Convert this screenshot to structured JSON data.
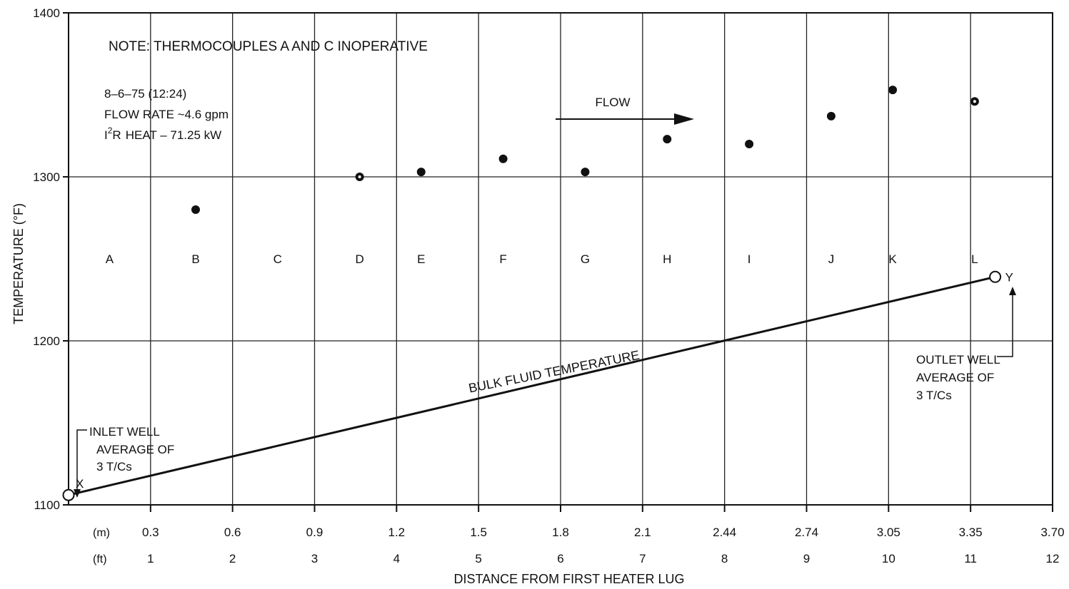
{
  "chart_data": {
    "type": "scatter",
    "ylabel": "TEMPERATURE (°F)",
    "xlabel": "DISTANCE FROM FIRST HEATER LUG",
    "ylim": [
      1100,
      1400
    ],
    "xlim_ft": [
      0,
      12
    ],
    "grid": true,
    "y_ticks": [
      "1100",
      "1200",
      "1300",
      "1400"
    ],
    "x_ticks_m": {
      "unit": "(m)",
      "labels": [
        "0.3",
        "0.6",
        "0.9",
        "1.2",
        "1.5",
        "1.8",
        "2.1",
        "2.44",
        "2.74",
        "3.05",
        "3.35",
        "3.70"
      ]
    },
    "x_ticks_ft": {
      "unit": "(ft)",
      "labels": [
        "1",
        "2",
        "3",
        "4",
        "5",
        "6",
        "7",
        "8",
        "9",
        "10",
        "11",
        "12"
      ]
    },
    "note": "NOTE:  THERMOCOUPLES A AND C INOPERATIVE",
    "info_lines": [
      "8–6–75 (12:24)",
      "FLOW RATE ~4.6 gpm",
      "HEAT – 71.25 kW"
    ],
    "info_heat_prefix": "I",
    "info_heat_sup": "2",
    "info_heat_r": "R",
    "flow_label": "FLOW",
    "thermocouples": [
      {
        "label": "A",
        "x": 0.5
      },
      {
        "label": "B",
        "x": 1.55
      },
      {
        "label": "C",
        "x": 2.55
      },
      {
        "label": "D",
        "x": 3.55,
        "temp": 1300,
        "open": true
      },
      {
        "label": "E",
        "x": 4.3,
        "temp": 1303
      },
      {
        "label": "F",
        "x": 5.3,
        "temp": 1311
      },
      {
        "label": "G",
        "x": 6.3,
        "temp": 1303
      },
      {
        "label": "H",
        "x": 7.3,
        "temp": 1323
      },
      {
        "label": "I",
        "x": 8.3,
        "temp": 1320
      },
      {
        "label": "J",
        "x": 9.3,
        "temp": 1337
      },
      {
        "label": "K",
        "x": 10.05,
        "temp": 1353
      },
      {
        "label": "L",
        "x": 11.05,
        "temp": 1346,
        "open": true
      }
    ],
    "b_point": {
      "x": 1.55,
      "temp": 1280
    },
    "bulk_line": {
      "label": "BULK FLUID TEMPERATURE",
      "start": {
        "x": 0,
        "temp": 1106,
        "marker": "X"
      },
      "end": {
        "x": 11.3,
        "temp": 1239,
        "marker": "Y"
      }
    },
    "inlet_label": [
      "INLET WELL",
      "AVERAGE OF",
      "3 T/Cs"
    ],
    "outlet_label": [
      "OUTLET WELL",
      "AVERAGE OF",
      "3 T/Cs"
    ]
  }
}
